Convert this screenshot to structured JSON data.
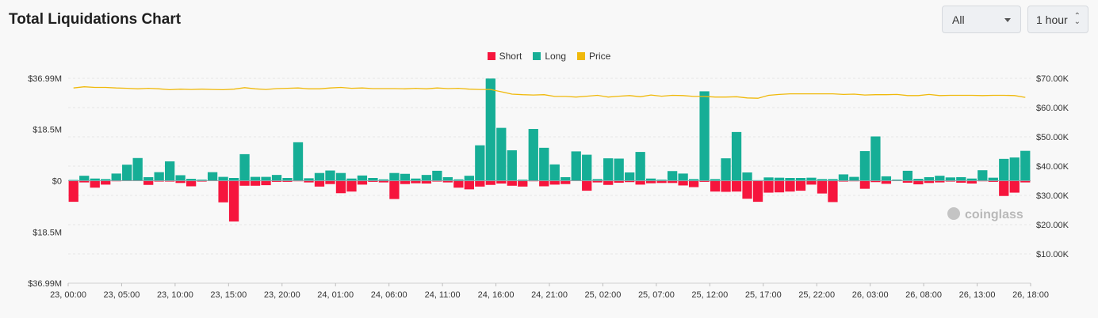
{
  "header": {
    "title": "Total Liquidations Chart",
    "filter_value": "All",
    "interval_value": "1 hour"
  },
  "legend": {
    "short_label": "Short",
    "long_label": "Long",
    "price_label": "Price"
  },
  "watermark": "coinglass",
  "colors": {
    "short": "#f6153d",
    "long": "#16ae96",
    "price": "#f0b90b"
  },
  "chart_data": {
    "type": "bar",
    "x_tick_labels": [
      "23, 00:00",
      "23, 05:00",
      "23, 10:00",
      "23, 15:00",
      "23, 20:00",
      "24, 01:00",
      "24, 06:00",
      "24, 11:00",
      "24, 16:00",
      "24, 21:00",
      "25, 02:00",
      "25, 07:00",
      "25, 12:00",
      "25, 17:00",
      "25, 22:00",
      "26, 03:00",
      "26, 08:00",
      "26, 13:00",
      "26, 18:00"
    ],
    "y_left_tick_labels": [
      "$36.99M",
      "$18.5M",
      "$0",
      "$18.5M",
      "$36.99M"
    ],
    "y_left_tick_values": [
      36.99,
      18.5,
      0,
      -18.5,
      -36.99
    ],
    "y_right_tick_labels": [
      "$70.00K",
      "$60.00K",
      "$50.00K",
      "$40.00K",
      "$30.00K",
      "$20.00K",
      "$10.00K"
    ],
    "y_right_tick_values": [
      70000,
      60000,
      50000,
      40000,
      30000,
      20000,
      10000
    ],
    "ylim_left": [
      -36.99,
      36.99
    ],
    "ylim_right": [
      0,
      70000
    ],
    "unit_left": "M USD",
    "series": [
      {
        "name": "Long",
        "values": [
          0.3,
          1.8,
          0.8,
          0.6,
          2.6,
          5.8,
          8.2,
          1.3,
          3.1,
          7,
          2,
          0.7,
          0.4,
          3.1,
          1.4,
          1,
          9.6,
          1.4,
          1.4,
          2.1,
          1,
          13.9,
          0.9,
          2.8,
          3.7,
          2.8,
          0.8,
          1.9,
          1,
          0.5,
          2.8,
          2.5,
          0.8,
          2.1,
          3.6,
          1.3,
          0.5,
          1.8,
          12.8,
          36.9,
          19.1,
          11,
          0.4,
          18.7,
          11.9,
          5.9,
          1.3,
          10.6,
          9.4,
          0.6,
          8.1,
          8,
          3,
          10.4,
          0.8,
          0.4,
          3.5,
          2.6,
          0.6,
          32.3,
          0.6,
          8.1,
          17.6,
          3,
          0.2,
          1.2,
          1.1,
          1,
          1,
          1.1,
          0.6,
          0.6,
          2.3,
          1.4,
          10.7,
          16,
          1.6,
          0.4,
          3.6,
          0.7,
          1.3,
          1.8,
          1.2,
          1.3,
          0.8,
          3.8,
          1.1,
          7.9,
          8.4,
          10.8
        ],
        "color": "#16ae96"
      },
      {
        "name": "Short",
        "values": [
          -7.6,
          -0.6,
          -2.5,
          -1.4,
          -0.2,
          -0.1,
          -0.1,
          -1.5,
          -0.3,
          -0.3,
          -0.8,
          -2,
          -0.3,
          -0.1,
          -7.8,
          -14.7,
          -1.8,
          -1.8,
          -1.6,
          -0.4,
          -0.4,
          -0.2,
          -0.6,
          -2.1,
          -1.2,
          -4.5,
          -3.9,
          -1.4,
          -0.4,
          -0.6,
          -6.6,
          -1.2,
          -0.9,
          -1,
          -0.3,
          -0.6,
          -2.5,
          -3.1,
          -2.1,
          -1.5,
          -1,
          -1.8,
          -2.1,
          -0.2,
          -2,
          -1.4,
          -1.2,
          -0.1,
          -3.6,
          -0.6,
          -1.5,
          -0.7,
          -0.5,
          -1.4,
          -0.9,
          -0.8,
          -0.8,
          -1.7,
          -2.3,
          -0.4,
          -3.9,
          -4,
          -3.9,
          -6.5,
          -7.6,
          -4.3,
          -4.2,
          -3.9,
          -3.6,
          -1.4,
          -4.6,
          -7.7,
          -0.3,
          -0.2,
          -2.9,
          -0.5,
          -1.1,
          -0.1,
          -0.7,
          -1.3,
          -0.8,
          -0.6,
          -0.3,
          -0.7,
          -1,
          -0.2,
          -0.4,
          -5.5,
          -4.3,
          -0.6
        ],
        "color": "#f6153d"
      },
      {
        "name": "Price",
        "axis": "right",
        "values": [
          66700,
          67100,
          66900,
          66900,
          66700,
          66600,
          66400,
          66600,
          66400,
          66100,
          66300,
          66200,
          66300,
          66200,
          66100,
          66300,
          66800,
          66400,
          66200,
          66500,
          66600,
          66700,
          66400,
          66400,
          66700,
          66900,
          66600,
          66700,
          66500,
          66500,
          66500,
          66400,
          66600,
          66400,
          66700,
          66500,
          66600,
          66300,
          66200,
          66200,
          65400,
          64600,
          64400,
          64300,
          64400,
          63800,
          63800,
          63600,
          63900,
          64200,
          63600,
          63900,
          64100,
          63700,
          64300,
          63900,
          64200,
          64100,
          63800,
          63800,
          63600,
          63600,
          63700,
          63300,
          63200,
          64200,
          64500,
          64700,
          64700,
          64700,
          64700,
          64700,
          64500,
          64600,
          64300,
          64400,
          64400,
          64500,
          64100,
          64100,
          64500,
          64100,
          64200,
          64200,
          64200,
          64100,
          64200,
          64200,
          64100,
          63500
        ],
        "color": "#f0b90b"
      }
    ]
  }
}
